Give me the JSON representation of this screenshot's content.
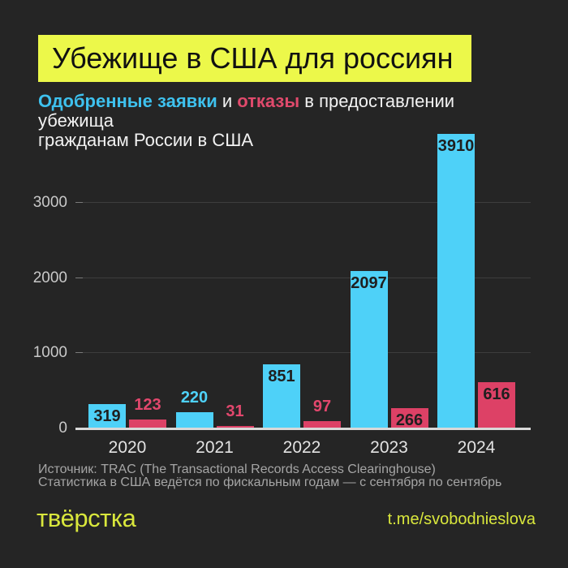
{
  "header": {
    "title": "Убежище в США для россиян",
    "subtitle": {
      "approved": "Одобренные заявки",
      "connector": " и ",
      "denied": "отказы",
      "line1_rest": " в предоставлении убежища",
      "line2": "гражданам России в США"
    }
  },
  "chart_data": {
    "type": "bar",
    "title": "Убежище в США для россиян",
    "categories": [
      "2020",
      "2021",
      "2022",
      "2023",
      "2024"
    ],
    "series": [
      {
        "name": "Одобренные заявки",
        "color": "#4ed1f8",
        "label_color": "#4ed1f8",
        "values": [
          319,
          220,
          851,
          2097,
          3910
        ],
        "label_placement": [
          "inside",
          "above",
          "inside",
          "inside",
          "inside"
        ]
      },
      {
        "name": "Отказы",
        "color": "#dd4166",
        "label_color": "#e2476d",
        "values": [
          123,
          31,
          97,
          266,
          616
        ],
        "label_placement": [
          "above",
          "above",
          "above",
          "inside",
          "inside"
        ]
      }
    ],
    "yticks": [
      0,
      1000,
      2000,
      3000
    ],
    "ylim": [
      0,
      4023
    ],
    "grid": true,
    "legend_position": "none",
    "value_labels": true,
    "inside_label_color": "#1f1f1f"
  },
  "source": {
    "line1": "Источник: TRAC (The Transactional Records Access Clearinghouse)",
    "line2": "Статистика в США ведётся по фискальным годам — с сентября по сентябрь"
  },
  "footer": {
    "logo": "твёрстка",
    "link": "t.me/svobodnieslova"
  },
  "colors": {
    "background": "#252525",
    "title_highlight": "#ecf84a",
    "footer_yellow": "#d9e73c",
    "approved_blue": "#4ed1f8",
    "denied_red": "#dd4166"
  }
}
